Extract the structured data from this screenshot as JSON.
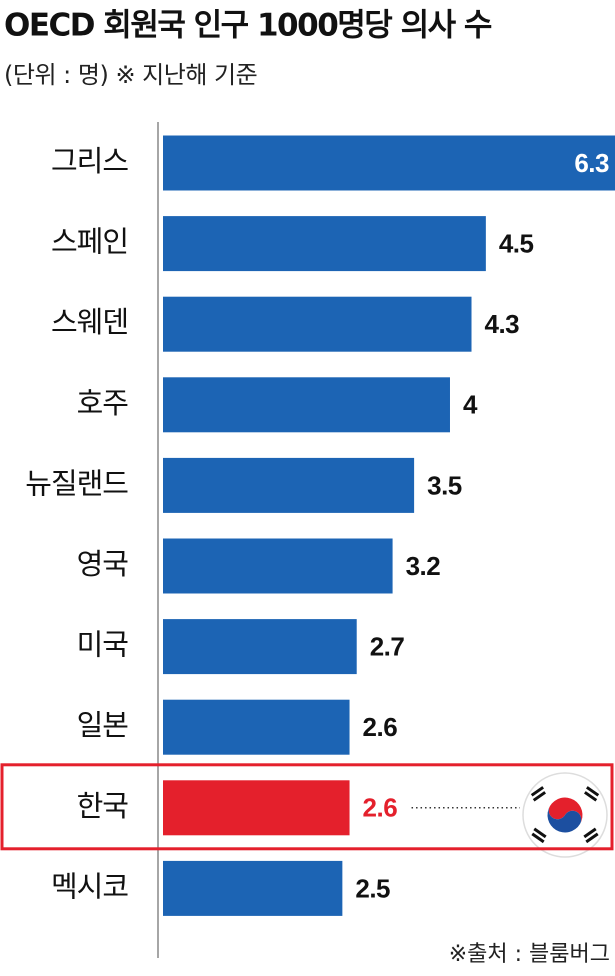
{
  "chart_data": {
    "type": "bar",
    "orientation": "horizontal",
    "title": "OECD 회원국 인구 1000명당 의사 수",
    "subtitle": "(단위 : 명)  ※ 지난해 기준",
    "source": "※출처 : 블룸버그",
    "categories": [
      "그리스",
      "스페인",
      "스웨덴",
      "호주",
      "뉴질랜드",
      "영국",
      "미국",
      "일본",
      "한국",
      "멕시코"
    ],
    "values": [
      6.3,
      4.5,
      4.3,
      4,
      3.5,
      3.2,
      2.7,
      2.6,
      2.6,
      2.5
    ],
    "color": "#1c64b4",
    "colors": [
      "#1c64b4",
      "#1c64b4",
      "#1c64b4",
      "#1c64b4",
      "#1c64b4",
      "#1c64b4",
      "#1c64b4",
      "#1c64b4",
      "#e4202c",
      "#1c64b4"
    ],
    "xlim": [
      0,
      6.3
    ]
  }
}
